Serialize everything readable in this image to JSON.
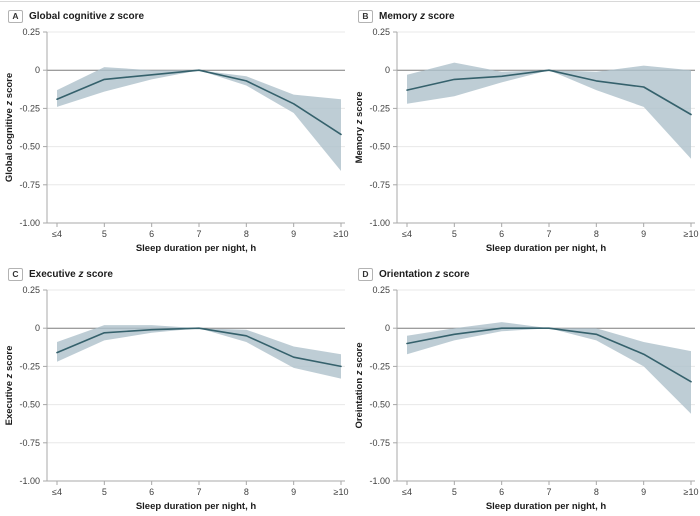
{
  "figure": {
    "panel_labels": [
      "A",
      "B",
      "C",
      "D"
    ],
    "y_tick_labels": [
      "0.25",
      "0",
      "-0.25",
      "-0.50",
      "-0.75",
      "-1.00"
    ],
    "y_tick_values": [
      0.25,
      0,
      -0.25,
      -0.5,
      -0.75,
      -1.0
    ],
    "x_tick_labels": [
      "≤4",
      "5",
      "6",
      "7",
      "8",
      "9",
      "≥10"
    ],
    "x_axis_title": "Sleep duration per night, h",
    "colors": {
      "line": "#35616c",
      "band": "#aec0cb",
      "grid": "#e8e8e8",
      "zero_line": "#7d7d7d",
      "axis": "#a8a8a8",
      "tick_text": "#3f3f3f",
      "title_text": "#1c1c1c",
      "panel_box_border": "#b3b3b3",
      "top_rule": "#d8d8d8"
    }
  },
  "chart_data": [
    {
      "type": "line",
      "panel_label": "A",
      "title": "Global cognitive z score",
      "xlabel": "Sleep duration per night, h",
      "ylabel": "Global cognitive z score",
      "categories": [
        "≤4",
        "5",
        "6",
        "7",
        "8",
        "9",
        "≥10"
      ],
      "ylim": [
        -1.0,
        0.25
      ],
      "yticks": [
        0.25,
        0,
        -0.25,
        -0.5,
        -0.75,
        -1.0
      ],
      "grid": true,
      "legend": "none",
      "series": [
        {
          "name": "estimate",
          "values": [
            -0.19,
            -0.06,
            -0.03,
            0.0,
            -0.07,
            -0.22,
            -0.42
          ]
        },
        {
          "name": "ci_upper",
          "values": [
            -0.13,
            0.02,
            0.0,
            0.0,
            -0.04,
            -0.16,
            -0.19
          ]
        },
        {
          "name": "ci_lower",
          "values": [
            -0.24,
            -0.14,
            -0.06,
            0.0,
            -0.1,
            -0.28,
            -0.66
          ]
        }
      ]
    },
    {
      "type": "line",
      "panel_label": "B",
      "title": "Memory z score",
      "xlabel": "Sleep duration per night, h",
      "ylabel": "Memory z score",
      "categories": [
        "≤4",
        "5",
        "6",
        "7",
        "8",
        "9",
        "≥10"
      ],
      "ylim": [
        -1.0,
        0.25
      ],
      "yticks": [
        0.25,
        0,
        -0.25,
        -0.5,
        -0.75,
        -1.0
      ],
      "grid": true,
      "legend": "none",
      "series": [
        {
          "name": "estimate",
          "values": [
            -0.13,
            -0.06,
            -0.04,
            0.0,
            -0.07,
            -0.11,
            -0.29
          ]
        },
        {
          "name": "ci_upper",
          "values": [
            -0.03,
            0.05,
            -0.01,
            0.0,
            -0.01,
            0.03,
            0.0
          ]
        },
        {
          "name": "ci_lower",
          "values": [
            -0.22,
            -0.17,
            -0.08,
            0.0,
            -0.13,
            -0.24,
            -0.58
          ]
        }
      ]
    },
    {
      "type": "line",
      "panel_label": "C",
      "title": "Executive z score",
      "xlabel": "Sleep duration per night, h",
      "ylabel": "Executive z score",
      "categories": [
        "≤4",
        "5",
        "6",
        "7",
        "8",
        "9",
        "≥10"
      ],
      "ylim": [
        -1.0,
        0.25
      ],
      "yticks": [
        0.25,
        0,
        -0.25,
        -0.5,
        -0.75,
        -1.0
      ],
      "grid": true,
      "legend": "none",
      "series": [
        {
          "name": "estimate",
          "values": [
            -0.16,
            -0.03,
            -0.01,
            0.0,
            -0.05,
            -0.19,
            -0.25
          ]
        },
        {
          "name": "ci_upper",
          "values": [
            -0.09,
            0.02,
            0.02,
            0.0,
            -0.01,
            -0.12,
            -0.17
          ]
        },
        {
          "name": "ci_lower",
          "values": [
            -0.22,
            -0.08,
            -0.03,
            0.0,
            -0.09,
            -0.26,
            -0.33
          ]
        }
      ]
    },
    {
      "type": "line",
      "panel_label": "D",
      "title": "Orientation z score",
      "xlabel": "Sleep duration per night, h",
      "ylabel": "Oreintation z score",
      "categories": [
        "≤4",
        "5",
        "6",
        "7",
        "8",
        "9",
        "≥10"
      ],
      "ylim": [
        -1.0,
        0.25
      ],
      "yticks": [
        0.25,
        0,
        -0.25,
        -0.5,
        -0.75,
        -1.0
      ],
      "grid": true,
      "legend": "none",
      "series": [
        {
          "name": "estimate",
          "values": [
            -0.1,
            -0.04,
            0.0,
            0.0,
            -0.04,
            -0.17,
            -0.35
          ]
        },
        {
          "name": "ci_upper",
          "values": [
            -0.05,
            0.0,
            0.04,
            0.0,
            0.0,
            -0.09,
            -0.15
          ]
        },
        {
          "name": "ci_lower",
          "values": [
            -0.17,
            -0.08,
            -0.02,
            0.0,
            -0.08,
            -0.25,
            -0.56
          ]
        }
      ]
    }
  ]
}
